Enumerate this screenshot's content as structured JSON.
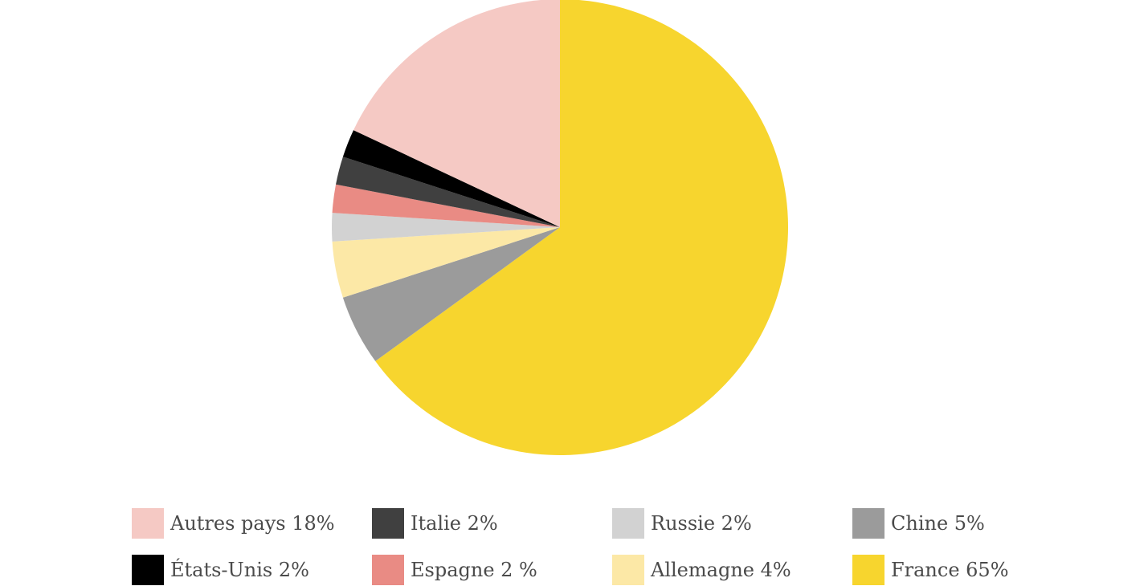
{
  "chart_data": {
    "type": "pie",
    "title": "",
    "slices": [
      {
        "label": "France 65%",
        "value": 65,
        "color": "#f7d52e"
      },
      {
        "label": "Chine 5%",
        "value": 5,
        "color": "#9b9b9b"
      },
      {
        "label": "Allemagne 4%",
        "value": 4,
        "color": "#fce8a6"
      },
      {
        "label": "Russie 2%",
        "value": 2,
        "color": "#d2d2d2"
      },
      {
        "label": "Espagne 2 %",
        "value": 2,
        "color": "#e98b84"
      },
      {
        "label": "Italie 2%",
        "value": 2,
        "color": "#404040"
      },
      {
        "label": "États-Unis 2%",
        "value": 2,
        "color": "#000000"
      },
      {
        "label": "Autres pays 18%",
        "value": 18,
        "color": "#f5c9c4"
      }
    ],
    "legend_position": "bottom"
  },
  "legend": [
    {
      "label": "Autres pays 18%",
      "color": "#f5c9c4"
    },
    {
      "label": "Italie 2%",
      "color": "#404040"
    },
    {
      "label": "Russie 2%",
      "color": "#d2d2d2"
    },
    {
      "label": "Chine 5%",
      "color": "#9b9b9b"
    },
    {
      "label": "États-Unis 2%",
      "color": "#000000"
    },
    {
      "label": "Espagne 2 %",
      "color": "#e98b84"
    },
    {
      "label": "Allemagne 4%",
      "color": "#fce8a6"
    },
    {
      "label": "France 65%",
      "color": "#f7d52e"
    }
  ]
}
